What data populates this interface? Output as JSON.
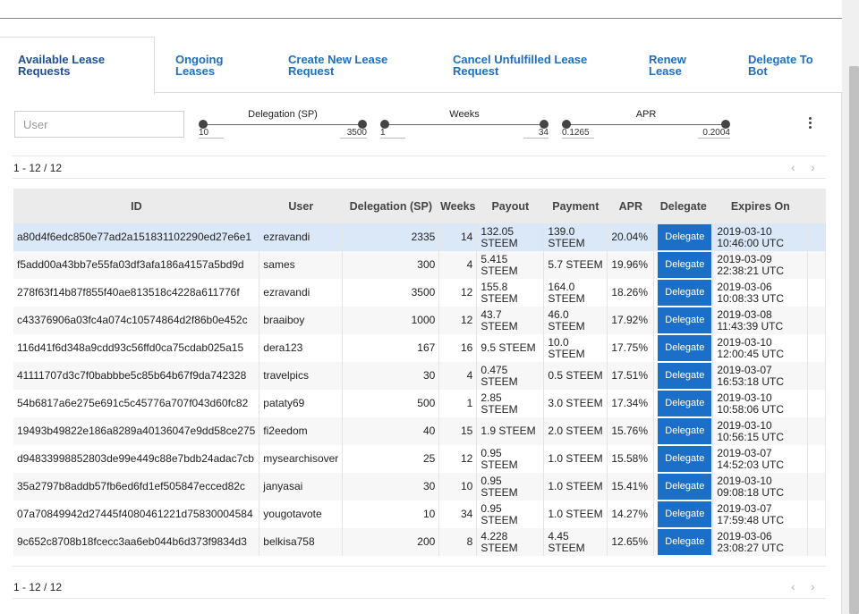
{
  "tabs": [
    {
      "line1": "Available Lease",
      "line2": "Requests"
    },
    {
      "line1": "Ongoing",
      "line2": "Leases"
    },
    {
      "line1": "Create New Lease",
      "line2": "Request"
    },
    {
      "line1": "Cancel Unfulfilled Lease",
      "line2": "Request"
    },
    {
      "line1": "Renew",
      "line2": "Lease"
    },
    {
      "line1": "Delegate To",
      "line2": "Bot"
    }
  ],
  "filters": {
    "user_placeholder": "User",
    "delegation": {
      "label": "Delegation (SP)",
      "min": "10",
      "max": "3500"
    },
    "weeks": {
      "label": "Weeks",
      "min": "1",
      "max": "34"
    },
    "apr": {
      "label": "APR",
      "min": "0.1265",
      "max": "0.2004"
    }
  },
  "pager": {
    "range_top": "1 - 12 / 12",
    "range_bottom": "1 - 12 / 12",
    "prev": "‹",
    "next": "›"
  },
  "table": {
    "columns": [
      "ID",
      "User",
      "Delegation (SP)",
      "Weeks",
      "Payout",
      "Payment",
      "APR",
      "Delegate",
      "Expires On"
    ],
    "button_label": "Delegate",
    "rows": [
      {
        "id": "a80d4f6edc850e77ad2a151831102290ed27e6e1",
        "user": "ezravandi",
        "delegation": "2335",
        "weeks": "14",
        "payout": "132.05 STEEM",
        "payment": "139.0 STEEM",
        "apr": "20.04%",
        "expires": "2019-03-10 10:46:00 UTC"
      },
      {
        "id": "f5add00a43bb7e55fa03df3afa186a4157a5bd9d",
        "user": "sames",
        "delegation": "300",
        "weeks": "4",
        "payout": "5.415 STEEM",
        "payment": "5.7 STEEM",
        "apr": "19.96%",
        "expires": "2019-03-09 22:38:21 UTC"
      },
      {
        "id": "278f63f14b87f855f40ae813518c4228a611776f",
        "user": "ezravandi",
        "delegation": "3500",
        "weeks": "12",
        "payout": "155.8 STEEM",
        "payment": "164.0 STEEM",
        "apr": "18.26%",
        "expires": "2019-03-06 10:08:33 UTC"
      },
      {
        "id": "c43376906a03fc4a074c10574864d2f86b0e452c",
        "user": "braaiboy",
        "delegation": "1000",
        "weeks": "12",
        "payout": "43.7 STEEM",
        "payment": "46.0 STEEM",
        "apr": "17.92%",
        "expires": "2019-03-08 11:43:39 UTC"
      },
      {
        "id": "116d41f6d348a9cdd93c56ffd0ca75cdab025a15",
        "user": "dera123",
        "delegation": "167",
        "weeks": "16",
        "payout": "9.5 STEEM",
        "payment": "10.0 STEEM",
        "apr": "17.75%",
        "expires": "2019-03-10 12:00:45 UTC"
      },
      {
        "id": "41111707d3c7f0babbbe5c85b64b67f9da742328",
        "user": "travelpics",
        "delegation": "30",
        "weeks": "4",
        "payout": "0.475 STEEM",
        "payment": "0.5 STEEM",
        "apr": "17.51%",
        "expires": "2019-03-07 16:53:18 UTC"
      },
      {
        "id": "54b6817a6e275e691c5c45776a707f043d60fc82",
        "user": "pataty69",
        "delegation": "500",
        "weeks": "1",
        "payout": "2.85 STEEM",
        "payment": "3.0 STEEM",
        "apr": "17.34%",
        "expires": "2019-03-10 10:58:06 UTC"
      },
      {
        "id": "19493b49822e186a8289a40136047e9dd58ce275",
        "user": "fi2eedom",
        "delegation": "40",
        "weeks": "15",
        "payout": "1.9 STEEM",
        "payment": "2.0 STEEM",
        "apr": "15.76%",
        "expires": "2019-03-10 10:56:15 UTC"
      },
      {
        "id": "d94833998852803de99e449c88e7bdb24adac7cb",
        "user": "mysearchisover",
        "delegation": "25",
        "weeks": "12",
        "payout": "0.95 STEEM",
        "payment": "1.0 STEEM",
        "apr": "15.58%",
        "expires": "2019-03-07 14:52:03 UTC"
      },
      {
        "id": "35a2797b8addb57fb6ed6fd1ef505847ecced82c",
        "user": "janyasai",
        "delegation": "30",
        "weeks": "10",
        "payout": "0.95 STEEM",
        "payment": "1.0 STEEM",
        "apr": "15.41%",
        "expires": "2019-03-10 09:08:18 UTC"
      },
      {
        "id": "07a70849942d27445f4080461221d75830004584",
        "user": "yougotavote",
        "delegation": "10",
        "weeks": "34",
        "payout": "0.95 STEEM",
        "payment": "1.0 STEEM",
        "apr": "14.27%",
        "expires": "2019-03-07 17:59:48 UTC"
      },
      {
        "id": "9c652c8708b18fcecc3aa6eb044b6d373f9834d3",
        "user": "belkisa758",
        "delegation": "200",
        "weeks": "8",
        "payout": "4.228 STEEM",
        "payment": "4.45 STEEM",
        "apr": "12.65%",
        "expires": "2019-03-06 23:08:27 UTC"
      }
    ]
  }
}
